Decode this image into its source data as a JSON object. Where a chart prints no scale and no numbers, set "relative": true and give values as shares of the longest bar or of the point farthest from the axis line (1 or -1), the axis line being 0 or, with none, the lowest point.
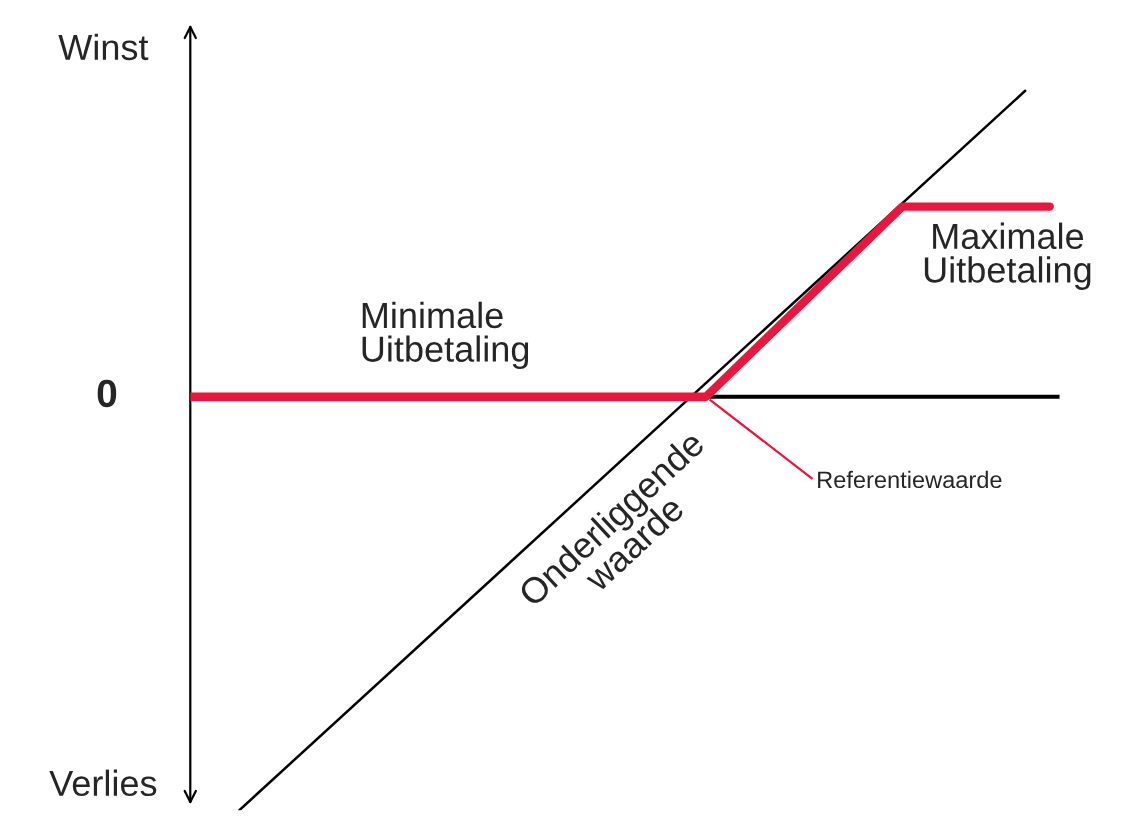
{
  "chart_data": {
    "type": "line",
    "relative": true,
    "categories": [
      null,
      null,
      null,
      null,
      null,
      null,
      null,
      null,
      null,
      null,
      null,
      null,
      null,
      null,
      null,
      null,
      null,
      null,
      null,
      null,
      null,
      null,
      null,
      null,
      null,
      null,
      null,
      null,
      null,
      null,
      null,
      null,
      null,
      null,
      null,
      null
    ],
    "series": [
      {
        "color": "#000000",
        "values": [
          null,
          null,
          -1,
          null,
          null,
          null,
          null,
          null,
          null,
          null,
          null,
          null,
          null,
          null,
          null,
          null,
          null,
          null,
          null,
          null,
          null,
          null,
          null,
          null,
          null,
          null,
          null,
          null,
          null,
          null,
          null,
          null,
          null,
          null,
          0.74,
          null
        ]
      },
      {
        "color": "#e8173d",
        "values": [
          0,
          null,
          null,
          null,
          null,
          null,
          null,
          null,
          null,
          null,
          null,
          null,
          null,
          null,
          null,
          null,
          null,
          null,
          null,
          null,
          null,
          0,
          null,
          null,
          null,
          null,
          null,
          null,
          null,
          0.46,
          null,
          null,
          null,
          null,
          null,
          0.46
        ]
      }
    ],
    "ref_lines": [
      {
        "axis": "y",
        "value": 0,
        "label": "0",
        "color": "#000000"
      }
    ],
    "annotations": [
      "Winst",
      "Verlies",
      "Minimale\nUitbetaling",
      "Maximale\nUitbetaling",
      "Referentiewaarde",
      "Onderliggende\nwaarde"
    ]
  }
}
